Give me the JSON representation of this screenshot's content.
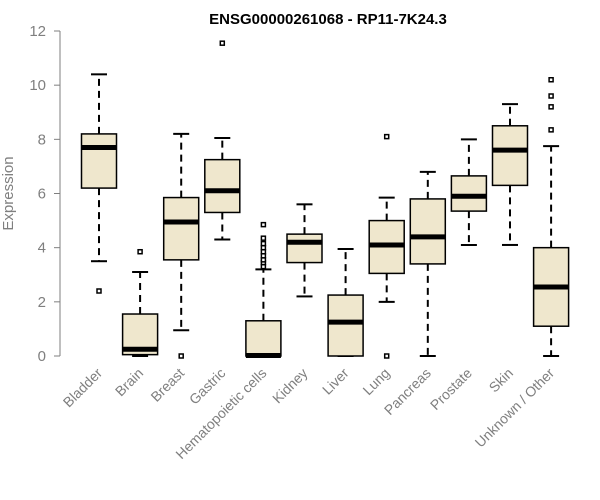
{
  "chart_data": {
    "type": "boxplot",
    "title": "ENSG00000261068 - RP11-7K24.3",
    "xlabel": "",
    "ylabel": "Expression",
    "ylim": [
      0,
      12
    ],
    "yticks": [
      0,
      2,
      4,
      6,
      8,
      10,
      12
    ],
    "grid": false,
    "legend": "none",
    "colors": {
      "box_fill": "#efe7cd",
      "stroke": "#000000",
      "axis_text": "#7f7f7f"
    },
    "categories": [
      "Bladder",
      "Brain",
      "Breast",
      "Gastric",
      "Hematopoietic cells",
      "Kidney",
      "Liver",
      "Lung",
      "Pancreas",
      "Prostate",
      "Skin",
      "Unknown / Other"
    ],
    "boxes": [
      {
        "name": "Bladder",
        "whisker_low": 3.5,
        "q1": 6.2,
        "median": 7.7,
        "q3": 8.2,
        "whisker_high": 10.4,
        "outliers": [
          2.4
        ]
      },
      {
        "name": "Brain",
        "whisker_low": 0.0,
        "q1": 0.05,
        "median": 0.25,
        "q3": 1.55,
        "whisker_high": 3.1,
        "outliers": [
          3.85
        ]
      },
      {
        "name": "Breast",
        "whisker_low": 0.95,
        "q1": 3.55,
        "median": 4.95,
        "q3": 5.85,
        "whisker_high": 8.2,
        "outliers": [
          0.0
        ]
      },
      {
        "name": "Gastric",
        "whisker_low": 4.3,
        "q1": 5.3,
        "median": 6.1,
        "q3": 7.25,
        "whisker_high": 8.05,
        "outliers": [
          11.55
        ]
      },
      {
        "name": "Hematopoietic cells",
        "whisker_low": 0.0,
        "q1": 0.0,
        "median": 0.02,
        "q3": 1.3,
        "whisker_high": 3.2,
        "outliers": [
          3.3,
          3.45,
          3.55,
          3.7,
          3.85,
          4.0,
          4.15,
          4.35,
          4.85
        ]
      },
      {
        "name": "Kidney",
        "whisker_low": 2.2,
        "q1": 3.45,
        "median": 4.2,
        "q3": 4.5,
        "whisker_high": 5.6,
        "outliers": []
      },
      {
        "name": "Liver",
        "whisker_low": 0.0,
        "q1": 0.0,
        "median": 1.25,
        "q3": 2.25,
        "whisker_high": 3.95,
        "outliers": []
      },
      {
        "name": "Lung",
        "whisker_low": 2.0,
        "q1": 3.05,
        "median": 4.1,
        "q3": 5.0,
        "whisker_high": 5.85,
        "outliers": [
          0.0,
          8.1
        ]
      },
      {
        "name": "Pancreas",
        "whisker_low": 0.0,
        "q1": 3.4,
        "median": 4.4,
        "q3": 5.8,
        "whisker_high": 6.8,
        "outliers": []
      },
      {
        "name": "Prostate",
        "whisker_low": 4.1,
        "q1": 5.35,
        "median": 5.9,
        "q3": 6.65,
        "whisker_high": 8.0,
        "outliers": []
      },
      {
        "name": "Skin",
        "whisker_low": 4.1,
        "q1": 6.3,
        "median": 7.6,
        "q3": 8.5,
        "whisker_high": 9.3,
        "outliers": []
      },
      {
        "name": "Unknown / Other",
        "whisker_low": 0.0,
        "q1": 1.1,
        "median": 2.55,
        "q3": 4.0,
        "whisker_high": 7.75,
        "outliers": [
          8.35,
          9.2,
          9.6,
          10.2
        ]
      }
    ]
  }
}
